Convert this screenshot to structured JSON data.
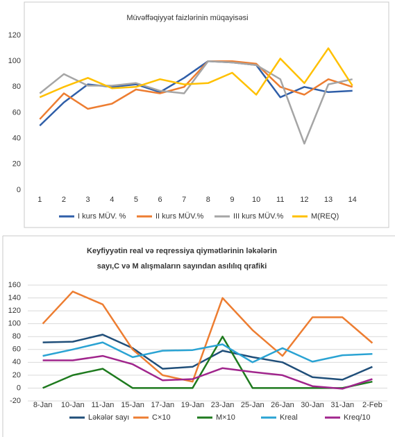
{
  "chart_data": [
    {
      "type": "line",
      "title": [
        "Müvəffəqiyyət faizlərinin müqayisəsi"
      ],
      "x": [
        1,
        2,
        3,
        4,
        5,
        6,
        7,
        8,
        9,
        10,
        11,
        12,
        13,
        14
      ],
      "xlim": [
        0.5,
        14.5
      ],
      "xticks": [
        1,
        2,
        3,
        4,
        5,
        6,
        7,
        8,
        9,
        10,
        11,
        12,
        13,
        14
      ],
      "ylim": [
        0,
        120
      ],
      "yticks": [
        0,
        20,
        40,
        60,
        80,
        100,
        120
      ],
      "grid": false,
      "series": [
        {
          "name": "I kurs MÜV. %",
          "color": "#2f5ea8",
          "values": [
            50,
            68,
            82,
            80,
            82,
            76,
            87,
            100,
            99,
            97,
            72,
            80,
            76,
            77
          ]
        },
        {
          "name": "II kurs MÜV.%",
          "color": "#ed7d31",
          "values": [
            55,
            75,
            63,
            67,
            78,
            75,
            80,
            100,
            100,
            98,
            80,
            74,
            86,
            80
          ]
        },
        {
          "name": "III kurs MÜV.%",
          "color": "#a5a5a5",
          "values": [
            75,
            90,
            81,
            81,
            83,
            77,
            75,
            100,
            99,
            97,
            86,
            36,
            82,
            86
          ]
        },
        {
          "name": "M(REQ)",
          "color": "#ffc000",
          "values": [
            72,
            80,
            87,
            79,
            80,
            86,
            82,
            83,
            91,
            74,
            102,
            83,
            110,
            81
          ]
        }
      ]
    },
    {
      "type": "line",
      "title": [
        "Keyfiyyətin real və reqressiya qiymətlərinin  ləkələrin",
        "sayı,C və M alışmaların sayından asılılıq qrafiki"
      ],
      "categories": [
        "8-Jan",
        "10-Jan",
        "11-Jan",
        "15-Jan",
        "17-Jan",
        "19-Jan",
        "23-Jan",
        "25-Jan",
        "26-Jan",
        "30-Jan",
        "31-Jan",
        "2-Feb"
      ],
      "ylim": [
        -20,
        160
      ],
      "yticks": [
        -20,
        0,
        20,
        40,
        60,
        80,
        100,
        120,
        140,
        160
      ],
      "grid": true,
      "series": [
        {
          "name": "Ləkələr sayı",
          "color": "#1f4e79",
          "values": [
            71,
            72,
            83,
            62,
            30,
            33,
            58,
            48,
            40,
            17,
            13,
            33
          ]
        },
        {
          "name": "C×10",
          "color": "#ed7d31",
          "values": [
            100,
            150,
            130,
            60,
            20,
            10,
            140,
            90,
            50,
            110,
            110,
            70
          ]
        },
        {
          "name": "M×10",
          "color": "#1e7a1e",
          "values": [
            0,
            20,
            30,
            0,
            0,
            0,
            80,
            0,
            0,
            0,
            0,
            10
          ]
        },
        {
          "name": "Kreal",
          "color": "#2aa3d3",
          "values": [
            50,
            60,
            71,
            48,
            58,
            59,
            68,
            40,
            62,
            41,
            51,
            53
          ]
        },
        {
          "name": "Kreq/10",
          "color": "#a0258c",
          "values": [
            43,
            43,
            50,
            37,
            12,
            14,
            31,
            25,
            20,
            3,
            -1,
            14
          ]
        }
      ]
    }
  ]
}
